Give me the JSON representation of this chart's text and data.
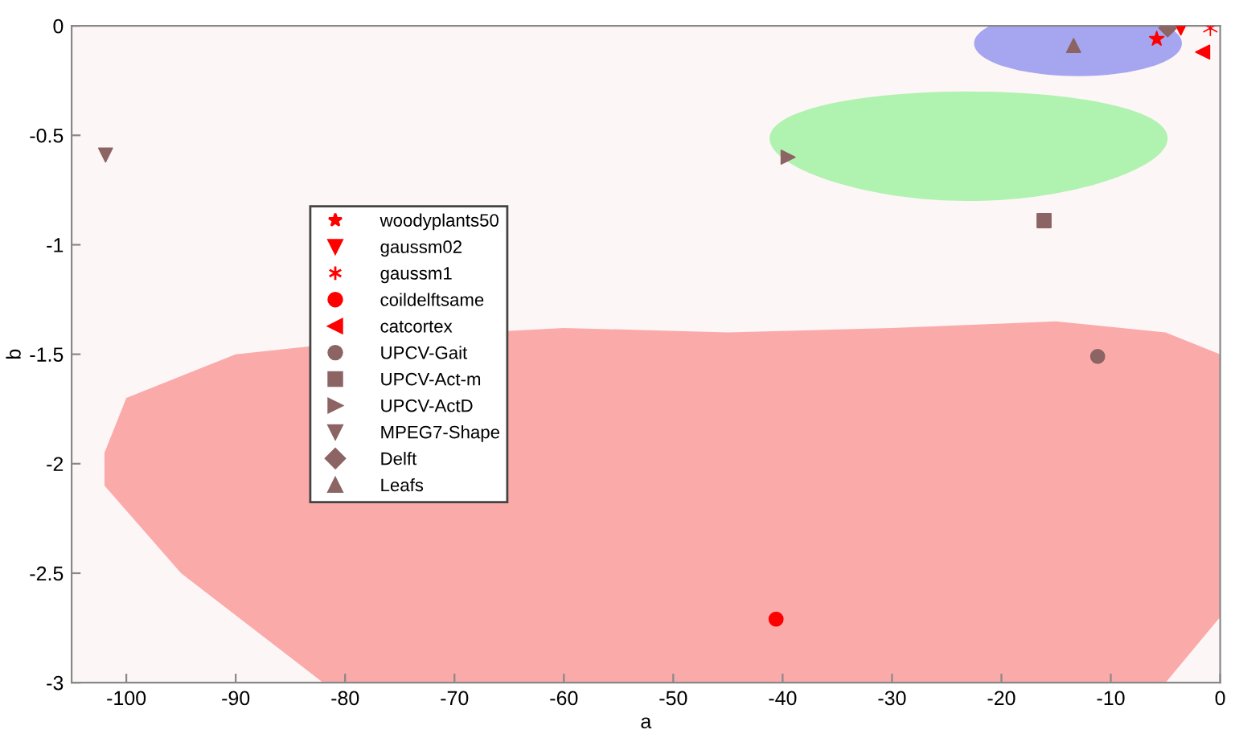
{
  "chart_data": {
    "type": "scatter",
    "xlabel": "a",
    "ylabel": "b",
    "xlim": [
      -105,
      0
    ],
    "ylim": [
      -3,
      0
    ],
    "xticks": [
      -100,
      -90,
      -80,
      -70,
      -60,
      -50,
      -40,
      -30,
      -20,
      -10,
      0
    ],
    "yticks": [
      -3,
      -2.5,
      -2,
      -1.5,
      -1,
      -0.5,
      0
    ],
    "grid": false,
    "legend": "left",
    "series": [
      {
        "name": "woodyplants50",
        "color": "#ff0000",
        "marker": "star",
        "x": [
          -5.8
        ],
        "values": [
          -0.06
        ]
      },
      {
        "name": "gaussm02",
        "color": "#ff0000",
        "marker": "triangle-down",
        "x": [
          -3.6
        ],
        "values": [
          -0.01
        ]
      },
      {
        "name": "gaussm1",
        "color": "#ff0000",
        "marker": "cross",
        "x": [
          -0.9
        ],
        "values": [
          -0.01
        ]
      },
      {
        "name": "coildelftsame",
        "color": "#ff0000",
        "marker": "circle",
        "x": [
          -40.6
        ],
        "values": [
          -2.71
        ]
      },
      {
        "name": "catcortex",
        "color": "#ff0000",
        "marker": "triangle-left",
        "x": [
          -1.6
        ],
        "values": [
          -0.12
        ]
      },
      {
        "name": "UPCV-Gait",
        "color": "#8c6464",
        "marker": "circle",
        "x": [
          -11.2
        ],
        "values": [
          -1.51
        ]
      },
      {
        "name": "UPCV-Act-m",
        "color": "#8c6464",
        "marker": "square",
        "x": [
          -16.1
        ],
        "values": [
          -0.89
        ]
      },
      {
        "name": "UPCV-ActD",
        "color": "#8c6464",
        "marker": "triangle-right",
        "x": [
          -39.5
        ],
        "values": [
          -0.6
        ]
      },
      {
        "name": "MPEG7-Shape",
        "color": "#8c6464",
        "marker": "triangle-down",
        "x": [
          -101.9
        ],
        "values": [
          -0.59
        ]
      },
      {
        "name": "Delft",
        "color": "#8c6464",
        "marker": "diamond",
        "x": [
          -4.8
        ],
        "values": [
          -0.01
        ]
      },
      {
        "name": "Leafs",
        "color": "#8c6464",
        "marker": "triangle",
        "x": [
          -13.4
        ],
        "values": [
          -0.09
        ]
      }
    ]
  }
}
